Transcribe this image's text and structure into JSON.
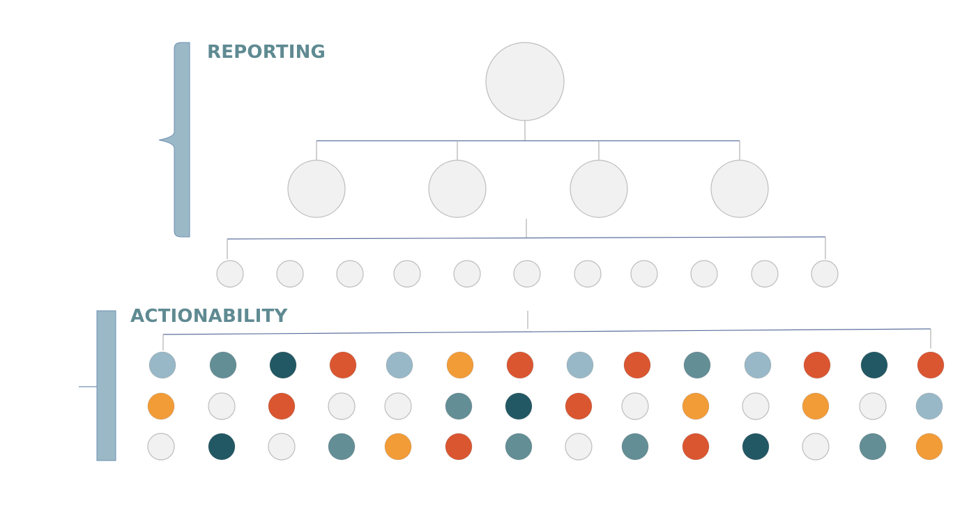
{
  "sections": {
    "reporting": {
      "label": "REPORTING"
    },
    "actionability": {
      "label": "ACTIONABILITY"
    }
  },
  "colors": {
    "label_text": "#5f8a92",
    "bracket_fill": "#9ab8c6",
    "bracket_stroke": "#6f8fb2",
    "connector": "#5b6f9c",
    "node_fill": "#f1f1f1",
    "node_stroke": "#bdbdbd",
    "palette": {
      "grey": "#f1f1f1",
      "lightblue": "#99b8c7",
      "teal": "#638e96",
      "darkteal": "#225864",
      "orange": "#f29c38",
      "red": "#da5631"
    }
  },
  "tree": {
    "levels": [
      {
        "name": "root",
        "count": 1
      },
      {
        "name": "level-2",
        "count": 4
      },
      {
        "name": "level-3",
        "count": 11
      }
    ]
  },
  "actionability_grid": {
    "rows": [
      [
        "lightblue",
        "teal",
        "darkteal",
        "red",
        "lightblue",
        "orange",
        "red",
        "lightblue",
        "red",
        "teal",
        "lightblue",
        "red",
        "darkteal",
        "red"
      ],
      [
        "orange",
        "grey",
        "red",
        "grey",
        "grey",
        "teal",
        "darkteal",
        "red",
        "grey",
        "orange",
        "grey",
        "orange",
        "grey",
        "lightblue"
      ],
      [
        "grey",
        "darkteal",
        "grey",
        "teal",
        "orange",
        "red",
        "teal",
        "grey",
        "teal",
        "red",
        "darkteal",
        "grey",
        "teal",
        "orange"
      ]
    ]
  }
}
